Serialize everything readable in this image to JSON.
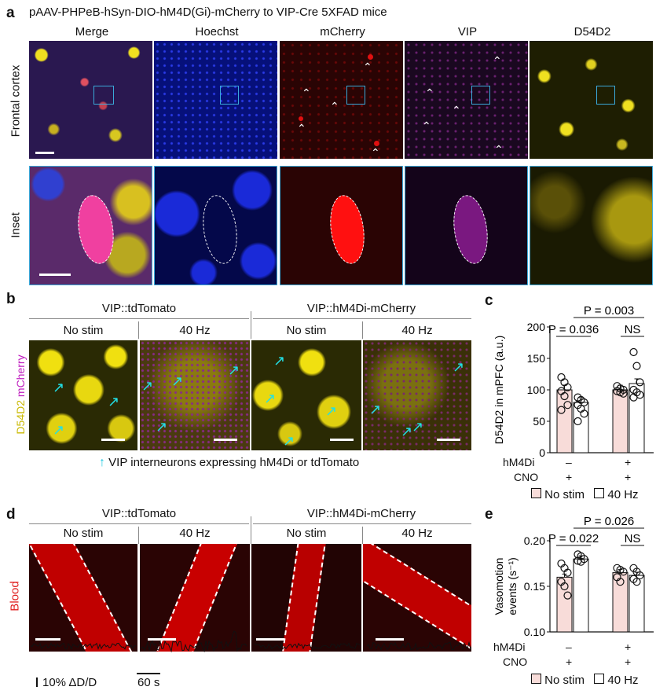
{
  "panel_a": {
    "letter": "a",
    "title": "pAAV-PHPeB-hSyn-DIO-hM4D(Gi)-mCherry to VIP-Cre 5XFAD mice",
    "columns": [
      "Merge",
      "Hoechst",
      "mCherry",
      "VIP",
      "D54D2"
    ],
    "rows": [
      "Frontal cortex",
      "Inset"
    ]
  },
  "panel_b": {
    "letter": "b",
    "group1": "VIP::tdTomato",
    "group2": "VIP::hM4Di-mCherry",
    "conditions": [
      "No stim",
      "40 Hz",
      "No stim",
      "40 Hz"
    ],
    "side_label_1": "D54D2",
    "side_label_2": "mCherry",
    "legend": "VIP interneurons expressing hM4Di or tdTomato"
  },
  "panel_d": {
    "letter": "d",
    "group1": "VIP::tdTomato",
    "group2": "VIP::hM4Di-mCherry",
    "conditions": [
      "No stim",
      "40 Hz",
      "No stim",
      "40 Hz"
    ],
    "side_label": "Blood",
    "scale_y": "10% ΔD/D",
    "scale_x": "60 s"
  },
  "chart_data": [
    {
      "panel": "c",
      "type": "bar",
      "ylabel": "D54D2 in mPFC (a.u.)",
      "ylim": [
        0,
        200
      ],
      "yticks": [
        0,
        50,
        100,
        150,
        200
      ],
      "row_labels": [
        "hM4Di",
        "CNO"
      ],
      "group_marks": [
        [
          "–",
          "+"
        ],
        [
          "+",
          "+"
        ]
      ],
      "series": [
        {
          "name": "No stim",
          "values": [
            100,
            100
          ],
          "points": [
            [
              120,
              112,
              104,
              98,
              90,
              76,
              68
            ],
            [
              106,
              102,
              100,
              98,
              96,
              94
            ]
          ],
          "color": "#f8dcd9"
        },
        {
          "name": "40 Hz",
          "values": [
            80,
            110
          ],
          "points": [
            [
              88,
              84,
              80,
              76,
              70,
              62,
              50
            ],
            [
              160,
              138,
              112,
              100,
              96,
              92,
              88
            ]
          ],
          "color": "#ffffff"
        }
      ],
      "annotations": [
        "P = 0.036",
        "P = 0.003",
        "NS"
      ]
    },
    {
      "panel": "e",
      "type": "bar",
      "ylabel": "Vasomotion events (s⁻¹)",
      "ylim": [
        0.1,
        0.2
      ],
      "yticks": [
        "0.10",
        "0.15",
        "0.20"
      ],
      "row_labels": [
        "hM4Di",
        "CNO"
      ],
      "group_marks": [
        [
          "–",
          "+"
        ],
        [
          "+",
          "+"
        ]
      ],
      "series": [
        {
          "name": "No stim",
          "values": [
            0.16,
            0.165
          ],
          "points": [
            [
              0.175,
              0.17,
              0.165,
              0.155,
              0.15,
              0.14
            ],
            [
              0.17,
              0.168,
              0.166,
              0.16,
              0.155
            ]
          ],
          "color": "#f8dcd9"
        },
        {
          "name": "40 Hz",
          "values": [
            0.18,
            0.162
          ],
          "points": [
            [
              0.185,
              0.183,
              0.18,
              0.178,
              0.177
            ],
            [
              0.17,
              0.166,
              0.162,
              0.158,
              0.155
            ]
          ],
          "color": "#ffffff"
        }
      ],
      "annotations": [
        "P = 0.022",
        "P = 0.026",
        "NS"
      ]
    }
  ],
  "colors": {
    "merge_bg": "#2a1850",
    "hoechst": "#0a18d8",
    "mcherry": "#e01010",
    "vip": "#b020b0",
    "d54d2": "#e8e020",
    "frame": "#3aa9d9",
    "arrow": "#22e0e6",
    "bar_nostim": "#f8dcd9"
  }
}
